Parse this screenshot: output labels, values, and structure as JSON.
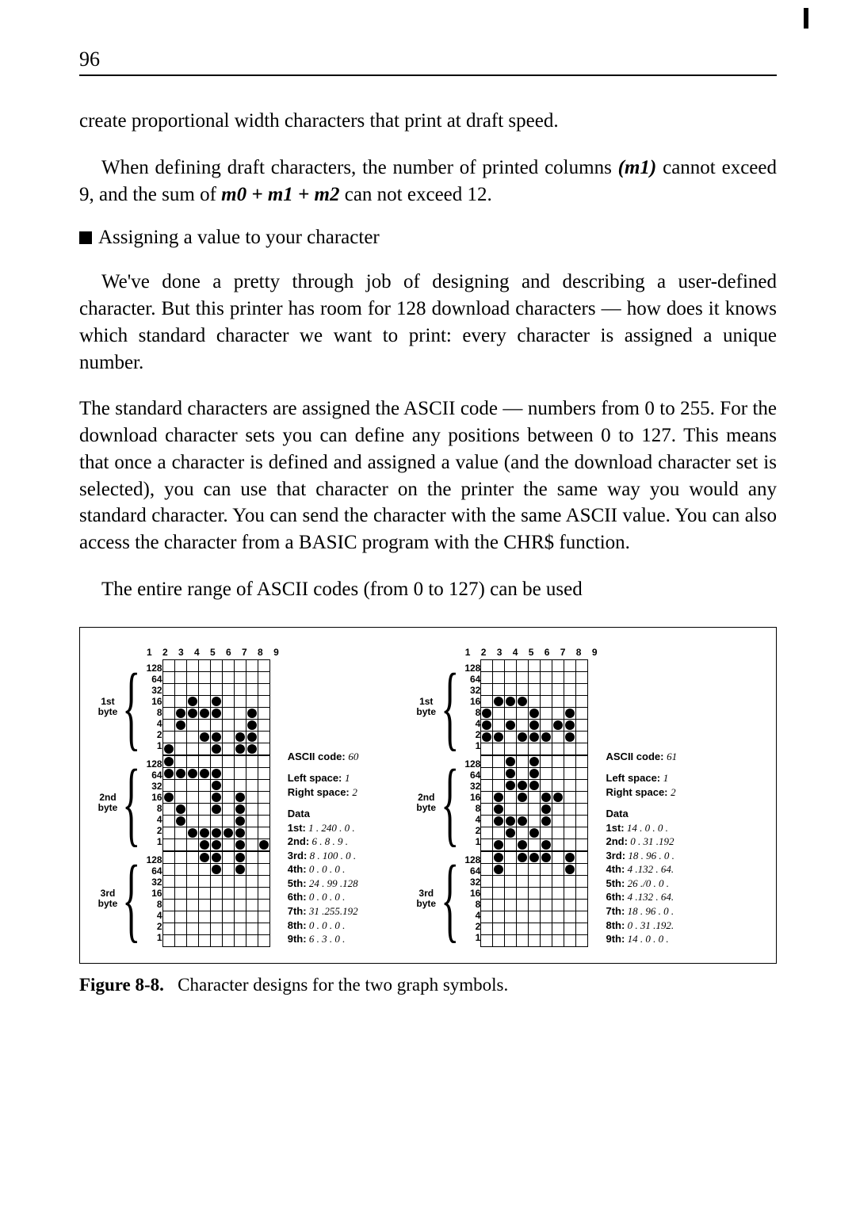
{
  "page_number": "96",
  "intro_text": "create proportional width characters that print at draft speed.",
  "intro_para2_a": "When defining draft characters, the number of printed columns ",
  "intro_para2_m": "(m1)",
  "intro_para2_b": " cannot exceed 9, and the sum of ",
  "intro_para2_sum": "m0 + m1 + m2",
  "intro_para2_c": " can not exceed 12.",
  "section_title": "Assigning a value to your character",
  "para3": "We've done a pretty through job of designing and describing a user-defined character. But this printer has room for 128 download characters — how does it knows which standard character we want to print: every character is assigned a unique number.",
  "para4": "The standard characters are assigned the ASCII code — numbers from 0 to 255. For the download character sets you can define any positions between 0 to 127. This means that once a character is defined and assigned a value (and the download character set is selected), you can use that character on the printer the same way you would any standard character. You can send the character with the same ASCII value. You can also access the character from a BASIC program with the CHR$ function.",
  "para5": "The entire range of ASCII codes (from 0 to 127) can be used",
  "figure": {
    "col_header": "1 2 3 4 5 6 7 8 9",
    "row_labels": [
      "128",
      "64",
      "32",
      "16",
      "8",
      "4",
      "2",
      "1"
    ],
    "byte_labels": [
      "1st\nbyte",
      "2nd\nbyte",
      "3rd\nbyte"
    ],
    "left": {
      "ascii_code": "60",
      "left_space": "1",
      "right_space": "2",
      "data": [
        "1st: 1 . 240 . 0 .",
        "2nd: 6 .   8 . 9 .",
        "3rd: 8 . 100 . 0 .",
        "4th: 0 .   0 . 0 .",
        "5th: 24 . 99 .128",
        "6th: 0 .  0 . 0 .",
        "7th: 31 .255.192",
        "8th: 0 .  0 . 0 .",
        "9th: 6 .  3 . 0 ."
      ],
      "grid1": [
        [
          0,
          0,
          0,
          0,
          0,
          0,
          0,
          0,
          0
        ],
        [
          0,
          0,
          0,
          0,
          0,
          0,
          0,
          0,
          0
        ],
        [
          0,
          0,
          0,
          0,
          0,
          0,
          0,
          0,
          0
        ],
        [
          0,
          0,
          1,
          0,
          1,
          0,
          0,
          0,
          0
        ],
        [
          0,
          1,
          1,
          1,
          1,
          0,
          0,
          1,
          0
        ],
        [
          0,
          1,
          0,
          0,
          0,
          0,
          0,
          1,
          0
        ],
        [
          0,
          0,
          0,
          1,
          1,
          0,
          1,
          1,
          0
        ],
        [
          1,
          0,
          0,
          0,
          1,
          0,
          1,
          1,
          0
        ]
      ],
      "grid2": [
        [
          1,
          0,
          0,
          0,
          0,
          0,
          0,
          0,
          0
        ],
        [
          1,
          1,
          1,
          1,
          1,
          0,
          0,
          0,
          0
        ],
        [
          0,
          0,
          0,
          0,
          1,
          0,
          0,
          0,
          0
        ],
        [
          1,
          0,
          0,
          0,
          1,
          0,
          1,
          0,
          0
        ],
        [
          0,
          1,
          0,
          0,
          1,
          0,
          1,
          0,
          0
        ],
        [
          0,
          1,
          0,
          0,
          0,
          0,
          1,
          0,
          0
        ],
        [
          0,
          0,
          1,
          1,
          1,
          1,
          1,
          0,
          0
        ],
        [
          0,
          0,
          0,
          1,
          1,
          0,
          1,
          0,
          1
        ]
      ],
      "grid3": [
        [
          0,
          0,
          0,
          1,
          1,
          0,
          1,
          0,
          0
        ],
        [
          0,
          0,
          0,
          0,
          1,
          0,
          1,
          0,
          0
        ],
        [
          0,
          0,
          0,
          0,
          0,
          0,
          0,
          0,
          0
        ],
        [
          0,
          0,
          0,
          0,
          0,
          0,
          0,
          0,
          0
        ],
        [
          0,
          0,
          0,
          0,
          0,
          0,
          0,
          0,
          0
        ],
        [
          0,
          0,
          0,
          0,
          0,
          0,
          0,
          0,
          0
        ],
        [
          0,
          0,
          0,
          0,
          0,
          0,
          0,
          0,
          0
        ],
        [
          0,
          0,
          0,
          0,
          0,
          0,
          0,
          0,
          0
        ]
      ]
    },
    "right": {
      "ascii_code": "61",
      "left_space": "1",
      "right_space": "2",
      "data": [
        "1st: 14 . 0 . 0 .",
        "2nd: 0 . 31 .192",
        "3rd: 18 . 96 . 0 .",
        "4th: 4 .132 . 64.",
        "5th: 26 ./0 . 0 .",
        "6th: 4 .132 . 64.",
        "7th: 18 . 96 . 0 .",
        "8th: 0 . 31 .192.",
        "9th: 14 . 0 . 0 ."
      ],
      "grid1": [
        [
          0,
          0,
          0,
          0,
          0,
          0,
          0,
          0,
          0
        ],
        [
          0,
          0,
          0,
          0,
          0,
          0,
          0,
          0,
          0
        ],
        [
          0,
          0,
          0,
          0,
          0,
          0,
          0,
          0,
          0
        ],
        [
          0,
          1,
          1,
          1,
          0,
          0,
          0,
          0,
          0
        ],
        [
          1,
          0,
          0,
          0,
          1,
          0,
          0,
          1,
          0
        ],
        [
          1,
          0,
          1,
          0,
          1,
          0,
          1,
          1,
          0
        ],
        [
          1,
          1,
          0,
          1,
          1,
          1,
          0,
          1,
          0
        ],
        [
          0,
          0,
          0,
          0,
          0,
          0,
          0,
          0,
          0
        ]
      ],
      "grid2": [
        [
          0,
          0,
          1,
          0,
          1,
          0,
          0,
          0,
          0
        ],
        [
          0,
          0,
          1,
          0,
          1,
          0,
          0,
          0,
          0
        ],
        [
          0,
          0,
          1,
          1,
          1,
          0,
          0,
          0,
          0
        ],
        [
          0,
          1,
          0,
          1,
          0,
          1,
          1,
          0,
          0
        ],
        [
          0,
          1,
          0,
          0,
          0,
          1,
          0,
          0,
          0
        ],
        [
          0,
          1,
          1,
          1,
          0,
          1,
          0,
          0,
          0
        ],
        [
          0,
          0,
          1,
          0,
          1,
          0,
          0,
          0,
          0
        ],
        [
          0,
          1,
          0,
          1,
          0,
          1,
          0,
          0,
          0
        ]
      ],
      "grid3": [
        [
          0,
          1,
          0,
          1,
          1,
          1,
          0,
          1,
          0
        ],
        [
          0,
          1,
          0,
          0,
          0,
          0,
          0,
          1,
          0
        ],
        [
          0,
          0,
          0,
          0,
          0,
          0,
          0,
          0,
          0
        ],
        [
          0,
          0,
          0,
          0,
          0,
          0,
          0,
          0,
          0
        ],
        [
          0,
          0,
          0,
          0,
          0,
          0,
          0,
          0,
          0
        ],
        [
          0,
          0,
          0,
          0,
          0,
          0,
          0,
          0,
          0
        ],
        [
          0,
          0,
          0,
          0,
          0,
          0,
          0,
          0,
          0
        ],
        [
          0,
          0,
          0,
          0,
          0,
          0,
          0,
          0,
          0
        ]
      ]
    }
  },
  "caption_num": "Figure 8-8.",
  "caption_text": "Character designs for the two graph symbols."
}
